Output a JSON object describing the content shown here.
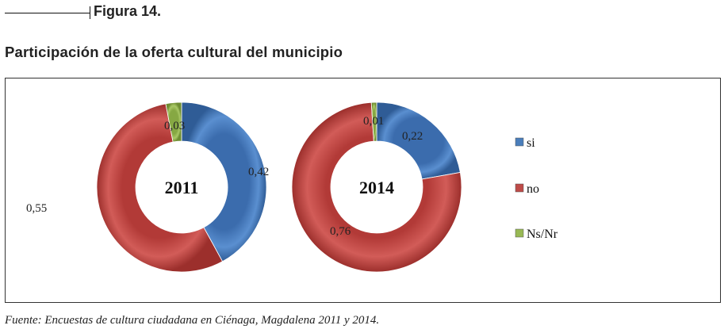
{
  "figure_label": "Figura 14.",
  "source": "Fuente: Encuestas de cultura ciudadana en Ciénaga, Magdalena 2011 y 2014.",
  "chart_data": {
    "type": "donut",
    "title": "Participación de la oferta cultural del municipio",
    "categories": [
      "si",
      "no",
      "Ns/Nr"
    ],
    "colors": {
      "si": "#4a7ebb",
      "no": "#be4b48",
      "Ns/Nr": "#98b954"
    },
    "legend_position": "right",
    "charts": [
      {
        "label": "2011",
        "values": [
          0.42,
          0.55,
          0.03
        ],
        "value_labels": [
          "0,42",
          "0,55",
          "0,03"
        ]
      },
      {
        "label": "2014",
        "values": [
          0.22,
          0.76,
          0.01
        ],
        "value_labels": [
          "0,22",
          "0,76",
          "0,01"
        ]
      }
    ]
  }
}
